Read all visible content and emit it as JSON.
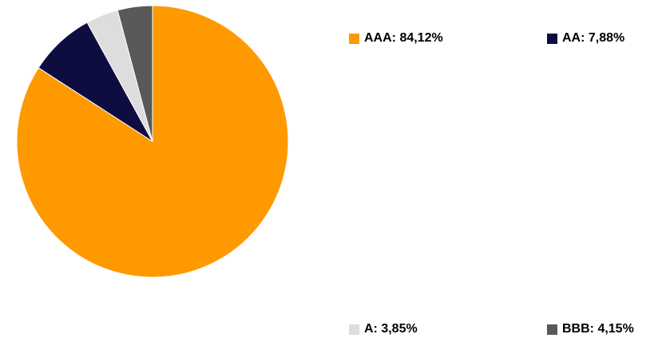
{
  "chart_data": {
    "type": "pie",
    "title": "",
    "legend_position": "right",
    "start_angle_deg": 0,
    "direction": "clockwise",
    "slices": [
      {
        "name": "AAA",
        "value": 84.12,
        "label": "AAA: 84,12%",
        "color": "#FF9900"
      },
      {
        "name": "AA",
        "value": 7.88,
        "label": "AA: 7,88%",
        "color": "#0D0D40"
      },
      {
        "name": "A",
        "value": 3.85,
        "label": "A: 3,85%",
        "color": "#DDDDDD"
      },
      {
        "name": "BBB",
        "value": 4.15,
        "label": "BBB: 4,15%",
        "color": "#595959"
      }
    ]
  }
}
